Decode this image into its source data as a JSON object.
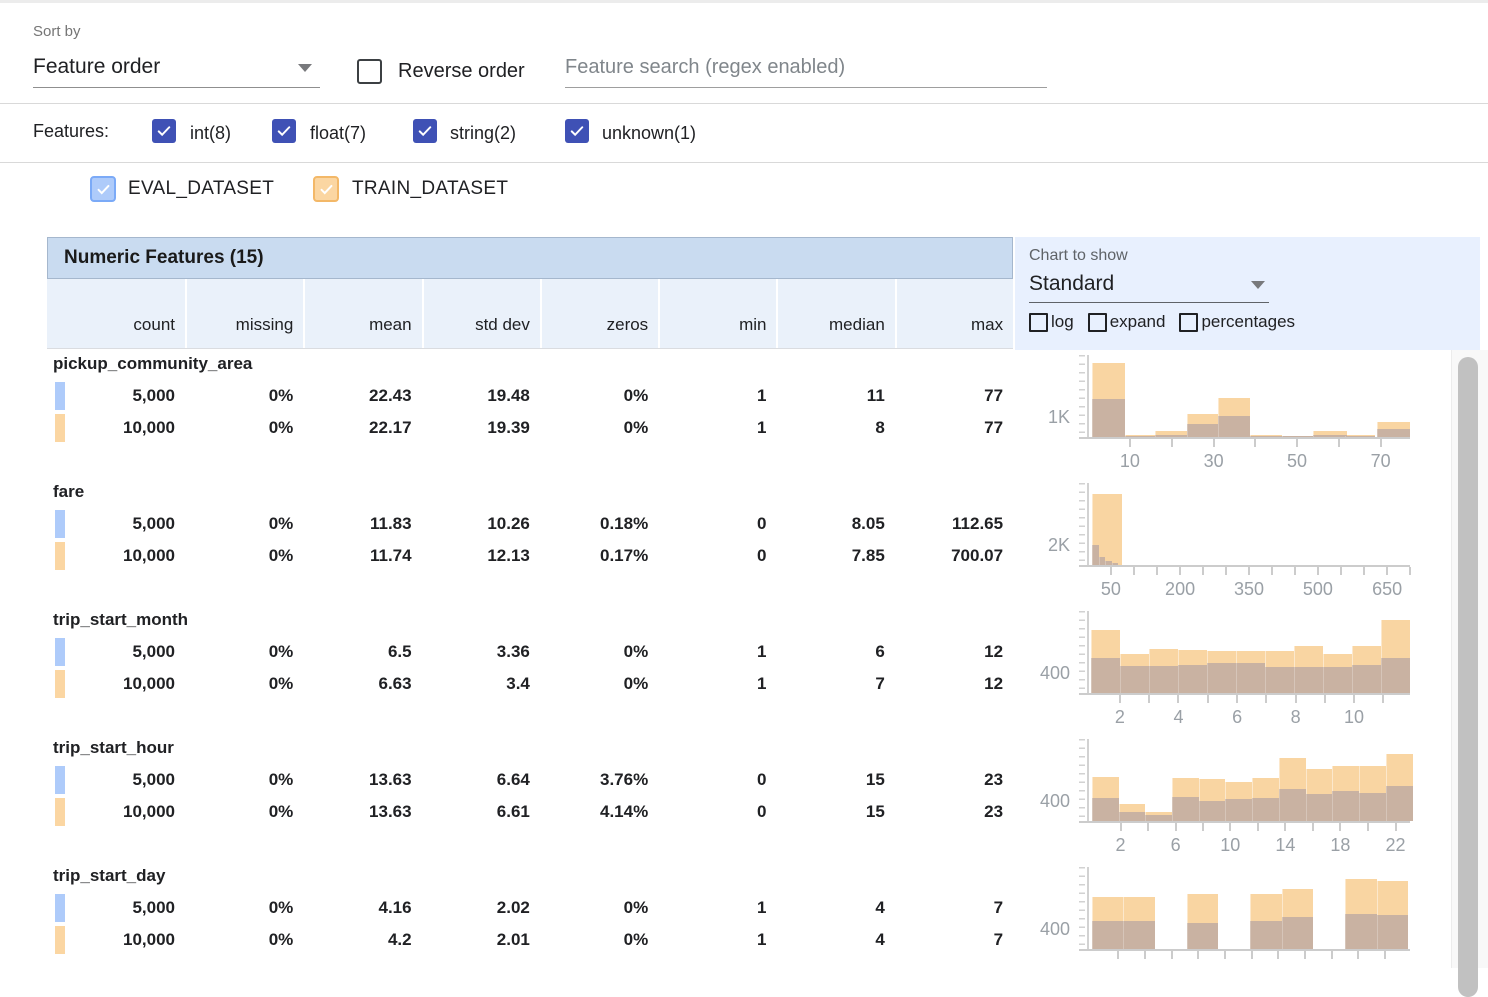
{
  "toolbar": {
    "sort_by_label": "Sort by",
    "sort_by_value": "Feature order",
    "reverse_order_label": "Reverse order",
    "search_placeholder": "Feature search (regex enabled)"
  },
  "filters": {
    "label": "Features:",
    "items": [
      {
        "label": "int(8)",
        "checked": true
      },
      {
        "label": "float(7)",
        "checked": true
      },
      {
        "label": "string(2)",
        "checked": true
      },
      {
        "label": "unknown(1)",
        "checked": true
      }
    ]
  },
  "datasets": [
    {
      "name": "EVAL_DATASET",
      "checked": true,
      "fill": "#aecbfa",
      "border": "#7baaf7"
    },
    {
      "name": "TRAIN_DATASET",
      "checked": true,
      "fill": "#fbd6a2",
      "border": "#f3b868"
    }
  ],
  "colors": {
    "filter_checkbox": "#3f51b5",
    "table_header_bg": "#c9dbf0",
    "subheader_bg": "#eaf1fa",
    "chart_panel_bg": "#e8f0fe",
    "bar_train": "#f9d5a2",
    "bar_overlap": "#c9b2a2",
    "axis": "#cccccc",
    "tick_text": "#9aa0a6"
  },
  "table": {
    "title": "Numeric Features (15)",
    "columns": [
      "count",
      "missing",
      "mean",
      "std dev",
      "zeros",
      "min",
      "median",
      "max"
    ],
    "features": [
      {
        "name": "pickup_community_area",
        "rows": [
          [
            "5,000",
            "0%",
            "22.43",
            "19.48",
            "0%",
            "1",
            "11",
            "77"
          ],
          [
            "10,000",
            "0%",
            "22.17",
            "19.39",
            "0%",
            "1",
            "8",
            "77"
          ]
        ]
      },
      {
        "name": "fare",
        "rows": [
          [
            "5,000",
            "0%",
            "11.83",
            "10.26",
            "0.18%",
            "0",
            "8.05",
            "112.65"
          ],
          [
            "10,000",
            "0%",
            "11.74",
            "12.13",
            "0.17%",
            "0",
            "7.85",
            "700.07"
          ]
        ]
      },
      {
        "name": "trip_start_month",
        "rows": [
          [
            "5,000",
            "0%",
            "6.5",
            "3.36",
            "0%",
            "1",
            "6",
            "12"
          ],
          [
            "10,000",
            "0%",
            "6.63",
            "3.4",
            "0%",
            "1",
            "7",
            "12"
          ]
        ]
      },
      {
        "name": "trip_start_hour",
        "rows": [
          [
            "5,000",
            "0%",
            "13.63",
            "6.64",
            "3.76%",
            "0",
            "15",
            "23"
          ],
          [
            "10,000",
            "0%",
            "13.63",
            "6.61",
            "4.14%",
            "0",
            "15",
            "23"
          ]
        ]
      },
      {
        "name": "trip_start_day",
        "rows": [
          [
            "5,000",
            "0%",
            "4.16",
            "2.02",
            "0%",
            "1",
            "4",
            "7"
          ],
          [
            "10,000",
            "0%",
            "4.2",
            "2.01",
            "0%",
            "1",
            "4",
            "7"
          ]
        ]
      }
    ]
  },
  "chart_controls": {
    "label": "Chart to show",
    "value": "Standard",
    "options": [
      {
        "label": "log",
        "checked": false
      },
      {
        "label": "expand",
        "checked": false
      },
      {
        "label": "percentages",
        "checked": false
      }
    ]
  },
  "chart_data": [
    {
      "type": "histogram",
      "feature": "pickup_community_area",
      "ylabel": "1K",
      "series": [
        "TRAIN_DATASET",
        "EVAL_DATASET"
      ],
      "xlim": [
        0,
        77
      ],
      "xticks": [
        {
          "p": 13.0,
          "l": "10"
        },
        {
          "p": 26.0,
          "l": ""
        },
        {
          "p": 39.0,
          "l": "30"
        },
        {
          "p": 52.0,
          "l": ""
        },
        {
          "p": 64.9,
          "l": "50"
        },
        {
          "p": 77.9,
          "l": ""
        },
        {
          "p": 90.9,
          "l": "70"
        }
      ],
      "bars": [
        {
          "l": 1.2,
          "w": 10.2,
          "t": 94,
          "e": 48
        },
        {
          "l": 11.5,
          "w": 9.3,
          "t": 2,
          "e": 1
        },
        {
          "l": 20.8,
          "w": 9.9,
          "t": 8,
          "e": 2
        },
        {
          "l": 30.7,
          "w": 9.6,
          "t": 29,
          "e": 16
        },
        {
          "l": 40.4,
          "w": 9.9,
          "t": 49,
          "e": 27
        },
        {
          "l": 50.3,
          "w": 9.9,
          "t": 2,
          "e": 1
        },
        {
          "l": 60.2,
          "w": 9.6,
          "t": 1,
          "e": 1
        },
        {
          "l": 69.9,
          "w": 10.6,
          "t": 8,
          "e": 2
        },
        {
          "l": 79.8,
          "w": 9.3,
          "t": 2,
          "e": 1
        },
        {
          "l": 89.8,
          "w": 10.2,
          "t": 19,
          "e": 10
        }
      ]
    },
    {
      "type": "histogram",
      "feature": "fare",
      "ylabel": "2K",
      "series": [
        "TRAIN_DATASET",
        "EVAL_DATASET"
      ],
      "xlim": [
        0,
        700
      ],
      "xticks": [
        {
          "p": 7.1,
          "l": "50"
        },
        {
          "p": 14.3,
          "l": ""
        },
        {
          "p": 21.4,
          "l": ""
        },
        {
          "p": 28.6,
          "l": "200"
        },
        {
          "p": 35.7,
          "l": ""
        },
        {
          "p": 42.9,
          "l": ""
        },
        {
          "p": 50,
          "l": "350"
        },
        {
          "p": 57.1,
          "l": ""
        },
        {
          "p": 64.3,
          "l": ""
        },
        {
          "p": 71.4,
          "l": "500"
        },
        {
          "p": 78.6,
          "l": ""
        },
        {
          "p": 85.7,
          "l": ""
        },
        {
          "p": 92.9,
          "l": "650"
        },
        {
          "p": 100,
          "l": ""
        }
      ],
      "bars": [
        {
          "l": 1.2,
          "w": 9.5,
          "t": 90,
          "e": 0
        },
        {
          "l": 1.2,
          "w": 2.2,
          "t": 0,
          "e": 25
        },
        {
          "l": 3.4,
          "w": 2.0,
          "t": 0,
          "e": 10
        },
        {
          "l": 5.4,
          "w": 2.0,
          "t": 0,
          "e": 5
        },
        {
          "l": 7.4,
          "w": 2.0,
          "t": 0,
          "e": 2
        }
      ]
    },
    {
      "type": "histogram",
      "feature": "trip_start_month",
      "ylabel": "400",
      "series": [
        "TRAIN_DATASET",
        "EVAL_DATASET"
      ],
      "xlim": [
        1,
        12
      ],
      "xticks": [
        {
          "p": 9.9,
          "l": "2"
        },
        {
          "p": 19.0,
          "l": ""
        },
        {
          "p": 28.1,
          "l": "4"
        },
        {
          "p": 37.2,
          "l": ""
        },
        {
          "p": 46.3,
          "l": "6"
        },
        {
          "p": 55.4,
          "l": ""
        },
        {
          "p": 64.5,
          "l": "8"
        },
        {
          "p": 73.6,
          "l": ""
        },
        {
          "p": 82.6,
          "l": "10"
        },
        {
          "p": 91.7,
          "l": ""
        }
      ],
      "bars": [
        {
          "l": 0.9,
          "w": 9.0,
          "t": 80,
          "e": 44
        },
        {
          "l": 9.9,
          "w": 9.0,
          "t": 50,
          "e": 34
        },
        {
          "l": 18.9,
          "w": 9.0,
          "t": 56,
          "e": 34
        },
        {
          "l": 27.9,
          "w": 9.0,
          "t": 55,
          "e": 36
        },
        {
          "l": 36.9,
          "w": 9.0,
          "t": 53,
          "e": 38
        },
        {
          "l": 45.9,
          "w": 9.0,
          "t": 53,
          "e": 38
        },
        {
          "l": 54.9,
          "w": 9.0,
          "t": 53,
          "e": 33
        },
        {
          "l": 63.9,
          "w": 9.0,
          "t": 59,
          "e": 33
        },
        {
          "l": 72.9,
          "w": 9.0,
          "t": 50,
          "e": 33
        },
        {
          "l": 81.9,
          "w": 9.0,
          "t": 59,
          "e": 35
        },
        {
          "l": 90.9,
          "w": 9.0,
          "t": 93,
          "e": 44
        }
      ]
    },
    {
      "type": "histogram",
      "feature": "trip_start_hour",
      "ylabel": "400",
      "series": [
        "TRAIN_DATASET",
        "EVAL_DATASET"
      ],
      "xlim": [
        0,
        23
      ],
      "xticks": [
        {
          "p": 10.1,
          "l": "2"
        },
        {
          "p": 18.6,
          "l": ""
        },
        {
          "p": 27.2,
          "l": "6"
        },
        {
          "p": 35.7,
          "l": ""
        },
        {
          "p": 44.2,
          "l": "10"
        },
        {
          "p": 52.8,
          "l": ""
        },
        {
          "p": 61.3,
          "l": "14"
        },
        {
          "p": 69.9,
          "l": ""
        },
        {
          "p": 78.4,
          "l": "18"
        },
        {
          "p": 87.0,
          "l": ""
        },
        {
          "p": 95.5,
          "l": "22"
        }
      ],
      "bars": [
        {
          "l": 1.2,
          "w": 8.3,
          "t": 56,
          "e": 29
        },
        {
          "l": 9.5,
          "w": 8.3,
          "t": 21,
          "e": 11
        },
        {
          "l": 17.8,
          "w": 8.3,
          "t": 11,
          "e": 8
        },
        {
          "l": 26.1,
          "w": 8.3,
          "t": 54,
          "e": 30
        },
        {
          "l": 34.4,
          "w": 8.3,
          "t": 53,
          "e": 25
        },
        {
          "l": 42.7,
          "w": 8.3,
          "t": 49,
          "e": 28
        },
        {
          "l": 51.0,
          "w": 8.3,
          "t": 54,
          "e": 29
        },
        {
          "l": 59.3,
          "w": 8.3,
          "t": 80,
          "e": 40
        },
        {
          "l": 67.6,
          "w": 8.3,
          "t": 66,
          "e": 34
        },
        {
          "l": 75.9,
          "w": 8.3,
          "t": 70,
          "e": 38
        },
        {
          "l": 84.2,
          "w": 8.3,
          "t": 70,
          "e": 36
        },
        {
          "l": 92.5,
          "w": 8.3,
          "t": 85,
          "e": 44
        }
      ]
    },
    {
      "type": "histogram",
      "feature": "trip_start_day",
      "ylabel": "400",
      "series": [
        "TRAIN_DATASET",
        "EVAL_DATASET"
      ],
      "xlim": [
        1,
        7
      ],
      "xticks": [
        {
          "p": 9.3,
          "l": ""
        },
        {
          "p": 17.7,
          "l": ""
        },
        {
          "p": 26.1,
          "l": ""
        },
        {
          "p": 34.2,
          "l": ""
        },
        {
          "p": 42.5,
          "l": ""
        },
        {
          "p": 50.9,
          "l": ""
        },
        {
          "p": 59.0,
          "l": ""
        },
        {
          "p": 67.4,
          "l": ""
        },
        {
          "p": 75.8,
          "l": ""
        },
        {
          "p": 83.9,
          "l": ""
        },
        {
          "p": 92.2,
          "l": ""
        }
      ],
      "bars": [
        {
          "l": 1.2,
          "w": 9.8,
          "t": 66,
          "e": 35
        },
        {
          "l": 11.0,
          "w": 9.8,
          "t": 66,
          "e": 35
        },
        {
          "l": 30.7,
          "w": 9.8,
          "t": 70,
          "e": 33
        },
        {
          "l": 50.3,
          "w": 9.8,
          "t": 70,
          "e": 35
        },
        {
          "l": 60.1,
          "w": 9.8,
          "t": 76,
          "e": 40
        },
        {
          "l": 79.8,
          "w": 9.8,
          "t": 88,
          "e": 44
        },
        {
          "l": 89.6,
          "w": 9.8,
          "t": 86,
          "e": 43
        }
      ]
    }
  ]
}
